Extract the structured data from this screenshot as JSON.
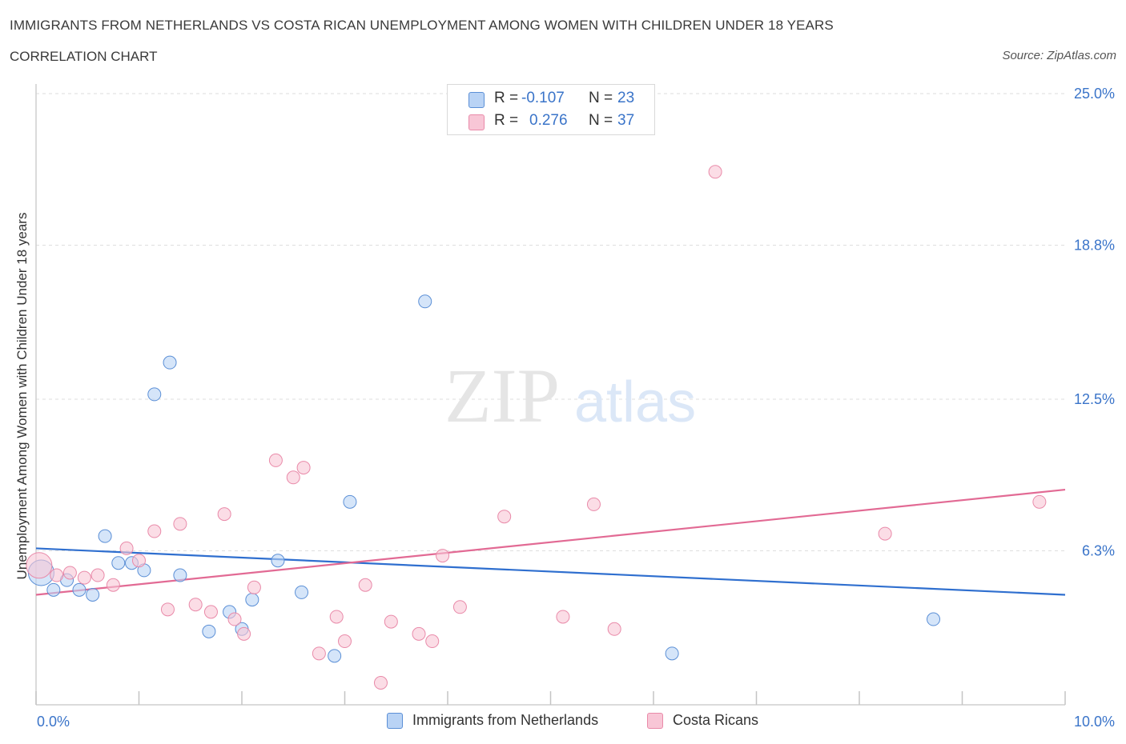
{
  "header": {
    "title": "IMMIGRANTS FROM NETHERLANDS VS COSTA RICAN UNEMPLOYMENT AMONG WOMEN WITH CHILDREN UNDER 18 YEARS",
    "subtitle": "CORRELATION CHART",
    "source": "Source: ZipAtlas.com"
  },
  "watermark": {
    "zip": "ZIP",
    "atlas": "atlas"
  },
  "legend": {
    "items": [
      {
        "r_label": "R =",
        "r_value": "-0.107",
        "n_label": "N =",
        "n_value": "23",
        "color": "#b9d3f5"
      },
      {
        "r_label": "R =",
        "r_value": "0.276",
        "n_label": "N =",
        "n_value": "37",
        "color": "#f8c6d6"
      }
    ]
  },
  "chart_data": {
    "type": "scatter",
    "title": "IMMIGRANTS FROM NETHERLANDS VS COSTA RICAN UNEMPLOYMENT AMONG WOMEN WITH CHILDREN UNDER 18 YEARS",
    "xlabel": "",
    "ylabel": "Unemployment Among Women with Children Under 18 years",
    "xlim": [
      0,
      10
    ],
    "ylim": [
      0,
      25
    ],
    "x_tick_labels": [
      "0.0%",
      "10.0%"
    ],
    "y_ticks": [
      6.3,
      12.5,
      18.8,
      25.0
    ],
    "y_tick_labels": [
      "6.3%",
      "12.5%",
      "18.8%",
      "25.0%"
    ],
    "grid": true,
    "legend_position": "top-center",
    "series": [
      {
        "name": "Immigrants from Netherlands",
        "color": "#b9d3f5",
        "stroke": "#5b8fd6",
        "line_color": "#2f6fcf",
        "trend": {
          "x": [
            0,
            10
          ],
          "y": [
            6.4,
            4.5
          ]
        },
        "points": [
          {
            "x": 0.05,
            "y": 5.4,
            "big": true
          },
          {
            "x": 0.17,
            "y": 4.7
          },
          {
            "x": 0.3,
            "y": 5.1
          },
          {
            "x": 0.42,
            "y": 4.7
          },
          {
            "x": 0.55,
            "y": 4.5
          },
          {
            "x": 0.67,
            "y": 6.9
          },
          {
            "x": 0.8,
            "y": 5.8
          },
          {
            "x": 0.93,
            "y": 5.8
          },
          {
            "x": 1.05,
            "y": 5.5
          },
          {
            "x": 1.15,
            "y": 12.7
          },
          {
            "x": 1.3,
            "y": 14.0
          },
          {
            "x": 1.4,
            "y": 5.3
          },
          {
            "x": 1.68,
            "y": 3.0
          },
          {
            "x": 1.88,
            "y": 3.8
          },
          {
            "x": 2.0,
            "y": 3.1
          },
          {
            "x": 2.1,
            "y": 4.3
          },
          {
            "x": 2.35,
            "y": 5.9
          },
          {
            "x": 2.58,
            "y": 4.6
          },
          {
            "x": 2.9,
            "y": 2.0
          },
          {
            "x": 3.05,
            "y": 8.3
          },
          {
            "x": 3.78,
            "y": 16.5
          },
          {
            "x": 6.18,
            "y": 2.1
          },
          {
            "x": 8.72,
            "y": 3.5
          }
        ]
      },
      {
        "name": "Costa Ricans",
        "color": "#f8c6d6",
        "stroke": "#e98aa9",
        "line_color": "#e26a94",
        "trend": {
          "x": [
            0,
            10
          ],
          "y": [
            4.5,
            8.8
          ]
        },
        "points": [
          {
            "x": 0.03,
            "y": 5.7,
            "big": true
          },
          {
            "x": 0.2,
            "y": 5.3
          },
          {
            "x": 0.33,
            "y": 5.4
          },
          {
            "x": 0.47,
            "y": 5.2
          },
          {
            "x": 0.6,
            "y": 5.3
          },
          {
            "x": 0.75,
            "y": 4.9
          },
          {
            "x": 0.88,
            "y": 6.4
          },
          {
            "x": 1.0,
            "y": 5.9
          },
          {
            "x": 1.15,
            "y": 7.1
          },
          {
            "x": 1.28,
            "y": 3.9
          },
          {
            "x": 1.4,
            "y": 7.4
          },
          {
            "x": 1.55,
            "y": 4.1
          },
          {
            "x": 1.7,
            "y": 3.8
          },
          {
            "x": 1.83,
            "y": 7.8
          },
          {
            "x": 1.93,
            "y": 3.5
          },
          {
            "x": 2.02,
            "y": 2.9
          },
          {
            "x": 2.12,
            "y": 4.8
          },
          {
            "x": 2.33,
            "y": 10.0
          },
          {
            "x": 2.5,
            "y": 9.3
          },
          {
            "x": 2.6,
            "y": 9.7
          },
          {
            "x": 2.75,
            "y": 2.1
          },
          {
            "x": 2.92,
            "y": 3.6
          },
          {
            "x": 3.0,
            "y": 2.6
          },
          {
            "x": 3.2,
            "y": 4.9
          },
          {
            "x": 3.35,
            "y": 0.9
          },
          {
            "x": 3.45,
            "y": 3.4
          },
          {
            "x": 3.72,
            "y": 2.9
          },
          {
            "x": 3.85,
            "y": 2.6
          },
          {
            "x": 3.95,
            "y": 6.1
          },
          {
            "x": 4.12,
            "y": 4.0
          },
          {
            "x": 4.55,
            "y": 7.7
          },
          {
            "x": 5.12,
            "y": 3.6
          },
          {
            "x": 5.42,
            "y": 8.2
          },
          {
            "x": 5.62,
            "y": 3.1
          },
          {
            "x": 6.6,
            "y": 21.8
          },
          {
            "x": 8.25,
            "y": 7.0
          },
          {
            "x": 9.75,
            "y": 8.3
          }
        ]
      }
    ]
  }
}
